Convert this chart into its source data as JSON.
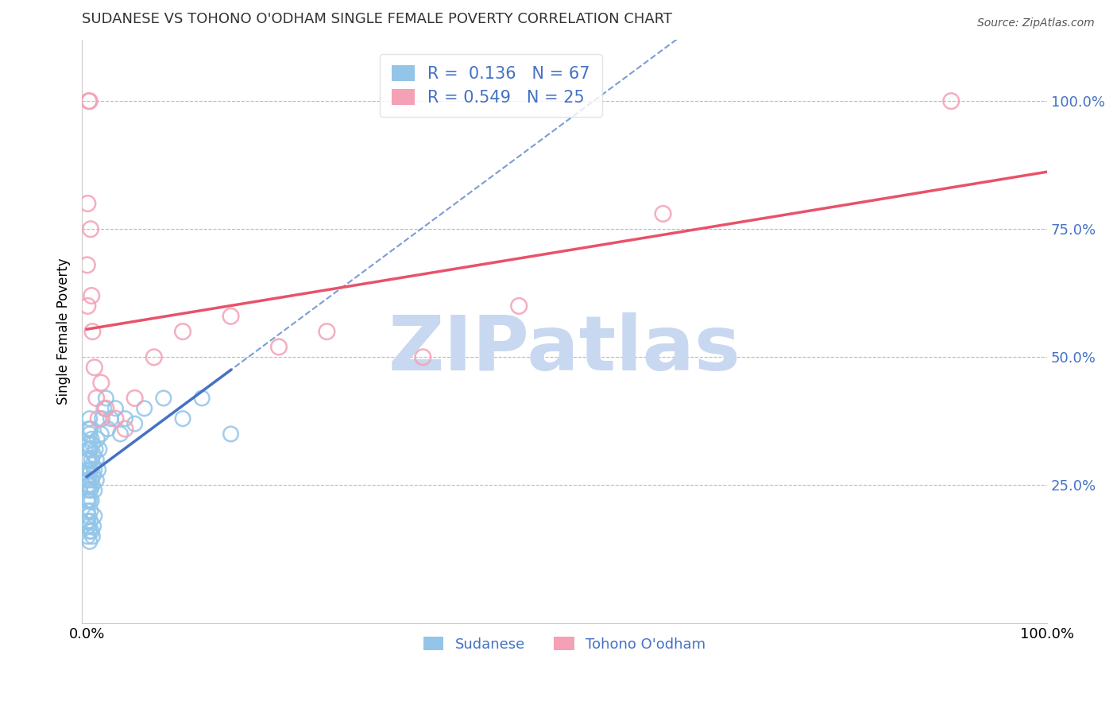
{
  "title": "SUDANESE VS TOHONO O'ODHAM SINGLE FEMALE POVERTY CORRELATION CHART",
  "source_text": "Source: ZipAtlas.com",
  "ylabel": "Single Female Poverty",
  "R_blue": 0.136,
  "N_blue": 67,
  "R_pink": 0.549,
  "N_pink": 25,
  "blue_color": "#92C5E8",
  "pink_color": "#F4A0B5",
  "blue_line_color": "#4472C4",
  "pink_line_color": "#E8526A",
  "grid_color": "#BBBBBB",
  "watermark_color": "#C8D8F0",
  "blue_x": [
    0.0005,
    0.0008,
    0.001,
    0.001,
    0.001,
    0.0012,
    0.0015,
    0.0015,
    0.002,
    0.002,
    0.002,
    0.002,
    0.002,
    0.003,
    0.003,
    0.003,
    0.003,
    0.003,
    0.003,
    0.004,
    0.004,
    0.004,
    0.004,
    0.005,
    0.005,
    0.005,
    0.005,
    0.006,
    0.006,
    0.006,
    0.007,
    0.007,
    0.008,
    0.008,
    0.009,
    0.01,
    0.01,
    0.011,
    0.012,
    0.013,
    0.015,
    0.016,
    0.018,
    0.02,
    0.022,
    0.025,
    0.03,
    0.035,
    0.04,
    0.05,
    0.06,
    0.08,
    0.1,
    0.12,
    0.15,
    0.001,
    0.001,
    0.002,
    0.002,
    0.003,
    0.003,
    0.004,
    0.004,
    0.005,
    0.006,
    0.007,
    0.008
  ],
  "blue_y": [
    0.22,
    0.2,
    0.25,
    0.28,
    0.3,
    0.22,
    0.26,
    0.32,
    0.24,
    0.27,
    0.3,
    0.33,
    0.36,
    0.22,
    0.25,
    0.28,
    0.32,
    0.35,
    0.38,
    0.24,
    0.28,
    0.32,
    0.36,
    0.22,
    0.26,
    0.3,
    0.34,
    0.25,
    0.29,
    0.33,
    0.27,
    0.31,
    0.24,
    0.28,
    0.32,
    0.26,
    0.3,
    0.34,
    0.28,
    0.32,
    0.35,
    0.38,
    0.4,
    0.42,
    0.36,
    0.38,
    0.4,
    0.35,
    0.38,
    0.37,
    0.4,
    0.42,
    0.38,
    0.42,
    0.35,
    0.18,
    0.15,
    0.17,
    0.19,
    0.16,
    0.14,
    0.18,
    0.2,
    0.16,
    0.15,
    0.17,
    0.19
  ],
  "pink_x": [
    0.0005,
    0.001,
    0.001,
    0.002,
    0.003,
    0.004,
    0.005,
    0.006,
    0.008,
    0.01,
    0.012,
    0.015,
    0.02,
    0.03,
    0.04,
    0.05,
    0.07,
    0.1,
    0.15,
    0.2,
    0.25,
    0.35,
    0.45,
    0.6,
    0.9
  ],
  "pink_y": [
    0.68,
    0.8,
    0.6,
    1.0,
    1.0,
    0.75,
    0.62,
    0.55,
    0.48,
    0.42,
    0.38,
    0.45,
    0.4,
    0.38,
    0.36,
    0.42,
    0.5,
    0.55,
    0.58,
    0.52,
    0.55,
    0.5,
    0.6,
    0.78,
    1.0
  ],
  "legend_labels": [
    "Sudanese",
    "Tohono O'odham"
  ]
}
